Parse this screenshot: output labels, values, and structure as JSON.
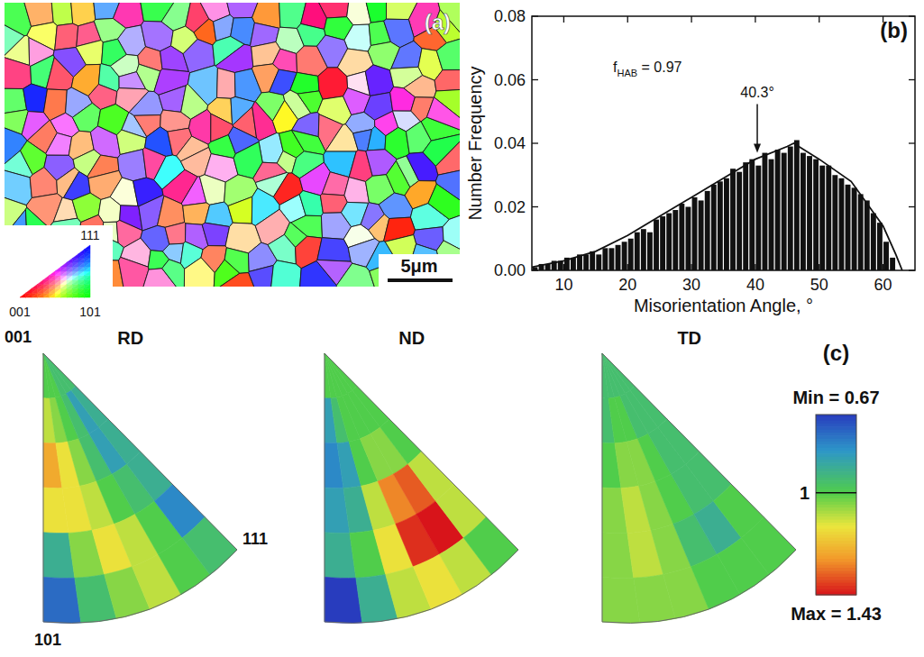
{
  "chart_data": [
    {
      "type": "image",
      "title": "(a)",
      "scale_bar": "5μm",
      "color_key": {
        "top": "111",
        "left": "001",
        "right": "101"
      }
    },
    {
      "type": "histogram",
      "title": "(b)",
      "x_label": "Misorientation Angle, °",
      "y_label": "Number Frequency",
      "bins": [
        5,
        6,
        7,
        8,
        9,
        10,
        11,
        12,
        13,
        14,
        15,
        16,
        17,
        18,
        19,
        20,
        21,
        22,
        23,
        24,
        25,
        26,
        27,
        28,
        29,
        30,
        31,
        32,
        33,
        34,
        35,
        36,
        37,
        38,
        39,
        40,
        41,
        42,
        43,
        44,
        45,
        46,
        47,
        48,
        49,
        50,
        51,
        52,
        53,
        54,
        55,
        56,
        57,
        58,
        59,
        60,
        61,
        62
      ],
      "values": [
        0.001,
        0.002,
        0.002,
        0.003,
        0.003,
        0.004,
        0.004,
        0.005,
        0.005,
        0.006,
        0.005,
        0.007,
        0.007,
        0.008,
        0.009,
        0.01,
        0.012,
        0.013,
        0.012,
        0.016,
        0.017,
        0.018,
        0.019,
        0.021,
        0.02,
        0.023,
        0.022,
        0.025,
        0.027,
        0.028,
        0.029,
        0.032,
        0.031,
        0.034,
        0.035,
        0.033,
        0.037,
        0.035,
        0.038,
        0.037,
        0.039,
        0.041,
        0.037,
        0.036,
        0.035,
        0.033,
        0.033,
        0.03,
        0.029,
        0.027,
        0.026,
        0.024,
        0.022,
        0.018,
        0.015,
        0.009,
        0.004
      ],
      "color": "#111111",
      "fit": {
        "x": [
          5,
          10,
          15,
          20,
          25,
          30,
          35,
          40,
          45,
          46,
          50,
          55,
          60,
          62,
          63
        ],
        "values": [
          0.001,
          0.003,
          0.006,
          0.011,
          0.017,
          0.023,
          0.029,
          0.035,
          0.039,
          0.04,
          0.035,
          0.028,
          0.014,
          0.005,
          0.0
        ],
        "color": "#111111"
      },
      "xlim": [
        5,
        65
      ],
      "xticks": [
        10,
        20,
        30,
        40,
        50,
        60
      ],
      "ylim": [
        0,
        0.08
      ],
      "yticks": [
        {
          "value": 0,
          "label": "0.00"
        },
        {
          "value": 0.02,
          "label": "0.02"
        },
        {
          "value": 0.04,
          "label": "0.04"
        },
        {
          "value": 0.06,
          "label": "0.06"
        },
        {
          "value": 0.08,
          "label": "0.08"
        }
      ],
      "annotations": [
        {
          "text": "f",
          "subscript": "HAB",
          "text_after": " = 0.97"
        },
        {
          "text": "40.3°",
          "x": 40.3,
          "y": 0.037
        }
      ]
    },
    {
      "type": "heatmap",
      "title": "(c)",
      "corner_labels": {
        "top": "001",
        "bottom": "101",
        "right": "111"
      },
      "panels": [
        {
          "name": "RD",
          "cells": [
            [
              1.0,
              1.0,
              1.0,
              0.95,
              0.95,
              0.95
            ],
            [
              1.1,
              1.05,
              1.0,
              0.95,
              0.85,
              0.9
            ],
            [
              1.25,
              1.15,
              1.05,
              0.95,
              0.85,
              0.9
            ],
            [
              1.15,
              1.15,
              1.1,
              1.0,
              0.95,
              0.9
            ],
            [
              0.9,
              1.05,
              1.15,
              1.1,
              1.0,
              0.8
            ],
            [
              0.75,
              0.95,
              1.05,
              1.1,
              1.0,
              0.95
            ]
          ]
        },
        {
          "name": "ND",
          "cells": [
            [
              1.0,
              1.0,
              1.0,
              1.0,
              1.0,
              1.0
            ],
            [
              0.85,
              0.95,
              1.0,
              1.0,
              1.0,
              1.0
            ],
            [
              0.8,
              0.85,
              1.0,
              1.05,
              1.05,
              1.0
            ],
            [
              0.85,
              0.9,
              1.1,
              1.3,
              1.35,
              1.1
            ],
            [
              0.9,
              1.0,
              1.15,
              1.4,
              1.43,
              1.1
            ],
            [
              0.67,
              0.9,
              1.1,
              1.15,
              1.1,
              1.0
            ]
          ]
        },
        {
          "name": "TD",
          "cells": [
            [
              0.95,
              0.95,
              0.95,
              0.95,
              0.95,
              0.95
            ],
            [
              0.95,
              1.0,
              1.0,
              0.95,
              0.95,
              0.95
            ],
            [
              1.0,
              1.05,
              1.05,
              1.0,
              0.95,
              0.95
            ],
            [
              1.05,
              1.1,
              1.05,
              1.0,
              0.95,
              0.95
            ],
            [
              1.05,
              1.1,
              1.05,
              0.95,
              0.9,
              1.0
            ],
            [
              1.05,
              1.05,
              1.05,
              1.0,
              1.0,
              1.0
            ]
          ]
        }
      ],
      "colorbar": {
        "range": [
          0.67,
          1.43
        ],
        "ticks": [
          1
        ],
        "min_label": "Min = 0.67",
        "max_label": "Max = 1.43"
      }
    }
  ]
}
